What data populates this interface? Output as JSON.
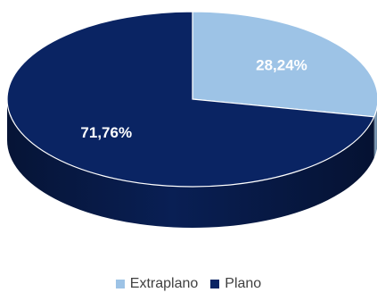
{
  "chart_data": {
    "type": "pie",
    "style": "3d",
    "legend_position": "bottom",
    "series": [
      {
        "label": "Extraplano",
        "value": 28.24,
        "display": "28,24%",
        "color": "#9dc3e6"
      },
      {
        "label": "Plano",
        "value": 71.76,
        "display": "71,76%",
        "color": "#0a2463"
      }
    ]
  }
}
